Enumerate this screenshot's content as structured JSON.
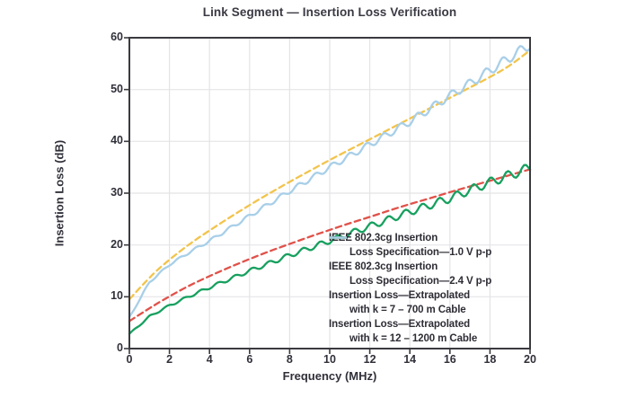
{
  "chart_data": {
    "type": "line",
    "title": "Link Segment — Insertion Loss Verification",
    "xlabel": "Frequency (MHz)",
    "ylabel": "Insertion Loss (dB)",
    "xlim": [
      0,
      20
    ],
    "ylim": [
      0,
      60
    ],
    "xticks": [
      0,
      2,
      4,
      6,
      8,
      10,
      12,
      14,
      16,
      18,
      20
    ],
    "yticks": [
      0,
      10,
      20,
      30,
      40,
      50,
      60
    ],
    "grid": true,
    "legend_position": "inside-lower-right",
    "x": [
      0,
      1,
      2,
      3,
      4,
      5,
      6,
      7,
      8,
      9,
      10,
      11,
      12,
      13,
      14,
      15,
      16,
      17,
      18,
      19,
      20
    ],
    "series": [
      {
        "name": "IEEE 802.3cg Insertion Loss Specification—1.0 V p-p",
        "legend": [
          "IEEE 802.3cg Insertion",
          "Loss Specification—1.0 V p-p"
        ],
        "color": "#e0524a",
        "line_style": "dashed",
        "rippled": false,
        "values": [
          5.3,
          7.8,
          10.1,
          12.2,
          14.0,
          15.7,
          17.3,
          18.8,
          20.2,
          21.6,
          22.9,
          24.2,
          25.4,
          26.7,
          27.9,
          29.0,
          30.2,
          31.3,
          32.4,
          33.5,
          34.6
        ]
      },
      {
        "name": "IEEE 802.3cg Insertion Loss Specification—2.4 V p-p",
        "legend": [
          "IEEE 802.3cg Insertion",
          "Loss Specification—2.4 V p-p"
        ],
        "color": "#f2c44d",
        "line_style": "dashed",
        "rippled": false,
        "values": [
          9.5,
          13.8,
          17.2,
          20.2,
          22.8,
          25.3,
          27.7,
          30.0,
          32.2,
          34.3,
          36.4,
          38.4,
          40.4,
          42.4,
          44.4,
          46.4,
          48.4,
          50.4,
          52.4,
          54.6,
          57.6
        ]
      },
      {
        "name": "Insertion Loss—Extrapolated with k = 7 – 700 m Cable",
        "legend": [
          "Insertion Loss—Extrapolated",
          "with k = 7 – 700 m Cable"
        ],
        "color": "#17a05f",
        "line_style": "solid",
        "rippled": true,
        "values": [
          2.8,
          6.2,
          8.3,
          10.1,
          11.8,
          13.4,
          15.0,
          16.5,
          18.0,
          19.4,
          20.8,
          22.2,
          23.6,
          25.0,
          26.4,
          27.7,
          29.0,
          30.6,
          32.1,
          33.5,
          34.9
        ]
      },
      {
        "name": "Insertion Loss—Extrapolated with k = 12 – 1200 m Cable",
        "legend": [
          "Insertion Loss—Extrapolated",
          "with k = 12 – 1200 m Cable"
        ],
        "color": "#a8cfe8",
        "line_style": "solid",
        "rippled": true,
        "values": [
          6.0,
          12.8,
          16.2,
          18.6,
          20.8,
          23.2,
          25.6,
          28.0,
          30.4,
          32.7,
          35.0,
          37.2,
          39.4,
          41.6,
          43.8,
          46.3,
          48.8,
          51.2,
          53.7,
          56.2,
          58.7
        ]
      }
    ]
  }
}
